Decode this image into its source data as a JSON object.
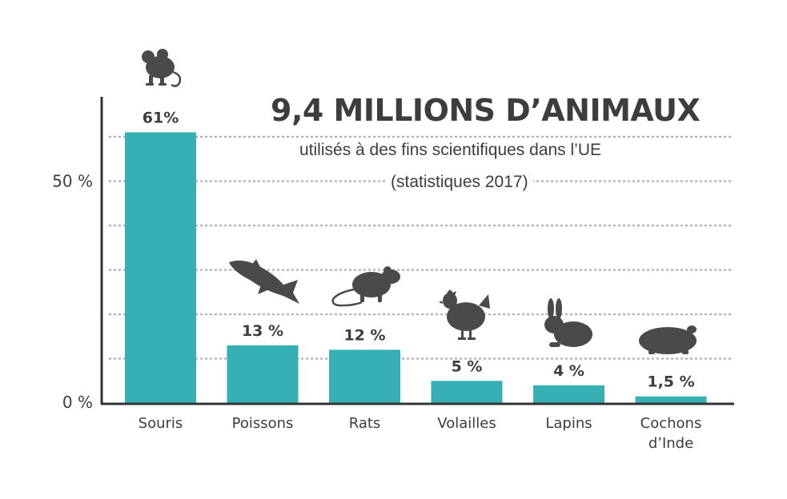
{
  "title": "9,4 MILLIONS D’ANIMAUX",
  "subtitle_line1": "utilisés à des fins scientifiques dans l’UE",
  "subtitle_line2": "(statistiques 2017)",
  "colors": {
    "bar": "#37b0b3",
    "text": "#3d3d3d",
    "axis": "#333333",
    "grid": "#b3b3b3",
    "icon": "#4a4a4a"
  },
  "chart_data": {
    "type": "bar",
    "categories": [
      "Souris",
      "Poissons",
      "Rats",
      "Volailles",
      "Lapins",
      "Cochons\nd’Inde"
    ],
    "values": [
      61,
      13,
      12,
      5,
      4,
      1.5
    ],
    "value_labels": [
      "61%",
      "13 %",
      "12 %",
      "5 %",
      "4 %",
      "1,5 %"
    ],
    "icons": [
      "mouse-icon",
      "fish-icon",
      "rat-icon",
      "chicken-icon",
      "rabbit-icon",
      "guinea-pig-icon"
    ],
    "y_ticks": [
      {
        "value": 0,
        "label": "0 %"
      },
      {
        "value": 50,
        "label": "50 %"
      }
    ],
    "ylim": [
      0,
      70
    ],
    "grid": "dotted horizontal lines every 10 %",
    "xlabel": "",
    "ylabel": ""
  }
}
